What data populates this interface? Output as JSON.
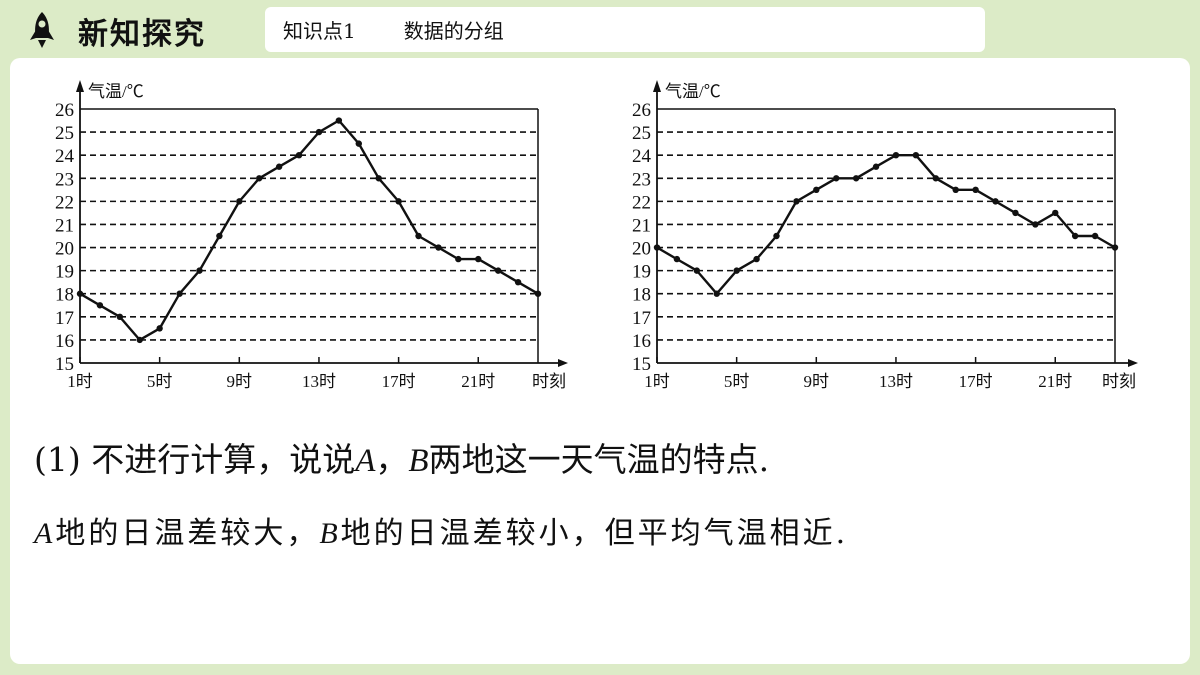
{
  "header": {
    "title": "新知探究",
    "kp_label": "知识点1",
    "kp_name": "数据的分组"
  },
  "colors": {
    "background": "#dcebc7",
    "panel": "#ffffff",
    "ink": "#111111"
  },
  "question": {
    "prefix": "(1) 不进行计算，说说",
    "a": "A",
    "sep": "，",
    "b": "B",
    "suffix": "两地这一天气温的特点."
  },
  "answer": {
    "a": "A",
    "part1": "地的日温差较大，",
    "b": "B",
    "part2": "地的日温差较小，但平均气温相近."
  },
  "chart_data": [
    {
      "type": "line",
      "ylabel": "气温/℃",
      "xlabel": "时刻",
      "ylim": [
        15,
        26
      ],
      "yticks": [
        15,
        16,
        17,
        18,
        19,
        20,
        21,
        22,
        23,
        24,
        25,
        26
      ],
      "xlim": [
        1,
        24
      ],
      "xticks": [
        1,
        5,
        9,
        13,
        17,
        21
      ],
      "xticklabels": [
        "1时",
        "5时",
        "9时",
        "13时",
        "17时",
        "21时"
      ],
      "grid": "dashed horizontal",
      "series": [
        {
          "x": [
            1,
            2,
            3,
            4,
            5,
            6,
            7,
            8,
            9,
            10,
            11,
            12,
            13,
            14,
            15,
            16,
            17,
            18,
            19,
            20,
            21,
            22,
            23,
            24
          ],
          "values": [
            18,
            17.5,
            17,
            16,
            16.5,
            18,
            19,
            20.5,
            22,
            23,
            23.5,
            24,
            25,
            25.5,
            24.5,
            23,
            22,
            20.5,
            20,
            19.5,
            19.5,
            19,
            18.5,
            18
          ]
        }
      ]
    },
    {
      "type": "line",
      "ylabel": "气温/℃",
      "xlabel": "时刻",
      "ylim": [
        15,
        26
      ],
      "yticks": [
        15,
        16,
        17,
        18,
        19,
        20,
        21,
        22,
        23,
        24,
        25,
        26
      ],
      "xlim": [
        1,
        24
      ],
      "xticks": [
        1,
        5,
        9,
        13,
        17,
        21
      ],
      "xticklabels": [
        "1时",
        "5时",
        "9时",
        "13时",
        "17时",
        "21时"
      ],
      "grid": "dashed horizontal",
      "series": [
        {
          "x": [
            1,
            2,
            3,
            4,
            5,
            6,
            7,
            8,
            9,
            10,
            11,
            12,
            13,
            14,
            15,
            16,
            17,
            18,
            19,
            20,
            21,
            22,
            23,
            24
          ],
          "values": [
            20,
            19.5,
            19,
            18,
            19,
            19.5,
            20.5,
            22,
            22.5,
            23,
            23,
            23.5,
            24,
            24,
            23,
            22.5,
            22.5,
            22,
            21.5,
            21,
            21.5,
            20.5,
            20.5,
            20
          ]
        }
      ]
    }
  ]
}
